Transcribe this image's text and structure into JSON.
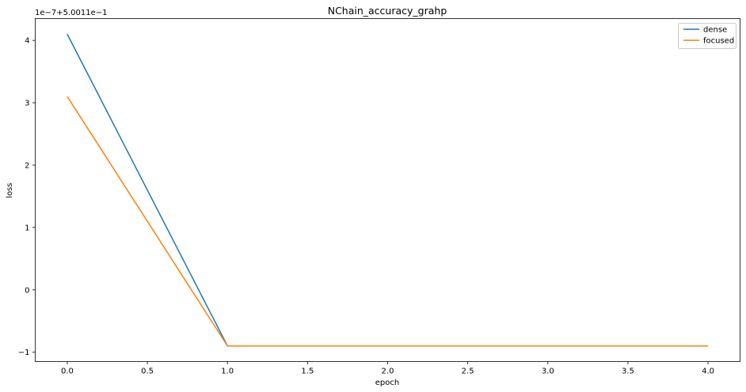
{
  "chart_data": {
    "type": "line",
    "title": "NChain_accuracy_grahp",
    "xlabel": "epoch",
    "ylabel": "loss",
    "offset_label": "1e−7+5.0011e−1",
    "x": [
      0,
      1,
      2,
      3,
      4
    ],
    "xlim": [
      -0.2,
      4.2
    ],
    "ylim": [
      -1.15,
      4.35
    ],
    "xticks": [
      0.0,
      0.5,
      1.0,
      1.5,
      2.0,
      2.5,
      3.0,
      3.5,
      4.0
    ],
    "xtick_labels": [
      "0.0",
      "0.5",
      "1.0",
      "1.5",
      "2.0",
      "2.5",
      "3.0",
      "3.5",
      "4.0"
    ],
    "yticks": [
      -1,
      0,
      1,
      2,
      3,
      4
    ],
    "ytick_labels": [
      "−1",
      "0",
      "1",
      "2",
      "3",
      "4"
    ],
    "grid": false,
    "legend_position": "top-right",
    "series": [
      {
        "name": "dense",
        "color": "#1f77b4",
        "values": [
          4.1,
          -0.9,
          -0.9,
          -0.9,
          -0.9
        ]
      },
      {
        "name": "focused",
        "color": "#ff7f0e",
        "values": [
          3.1,
          -0.9,
          -0.9,
          -0.9,
          -0.9
        ]
      }
    ]
  }
}
